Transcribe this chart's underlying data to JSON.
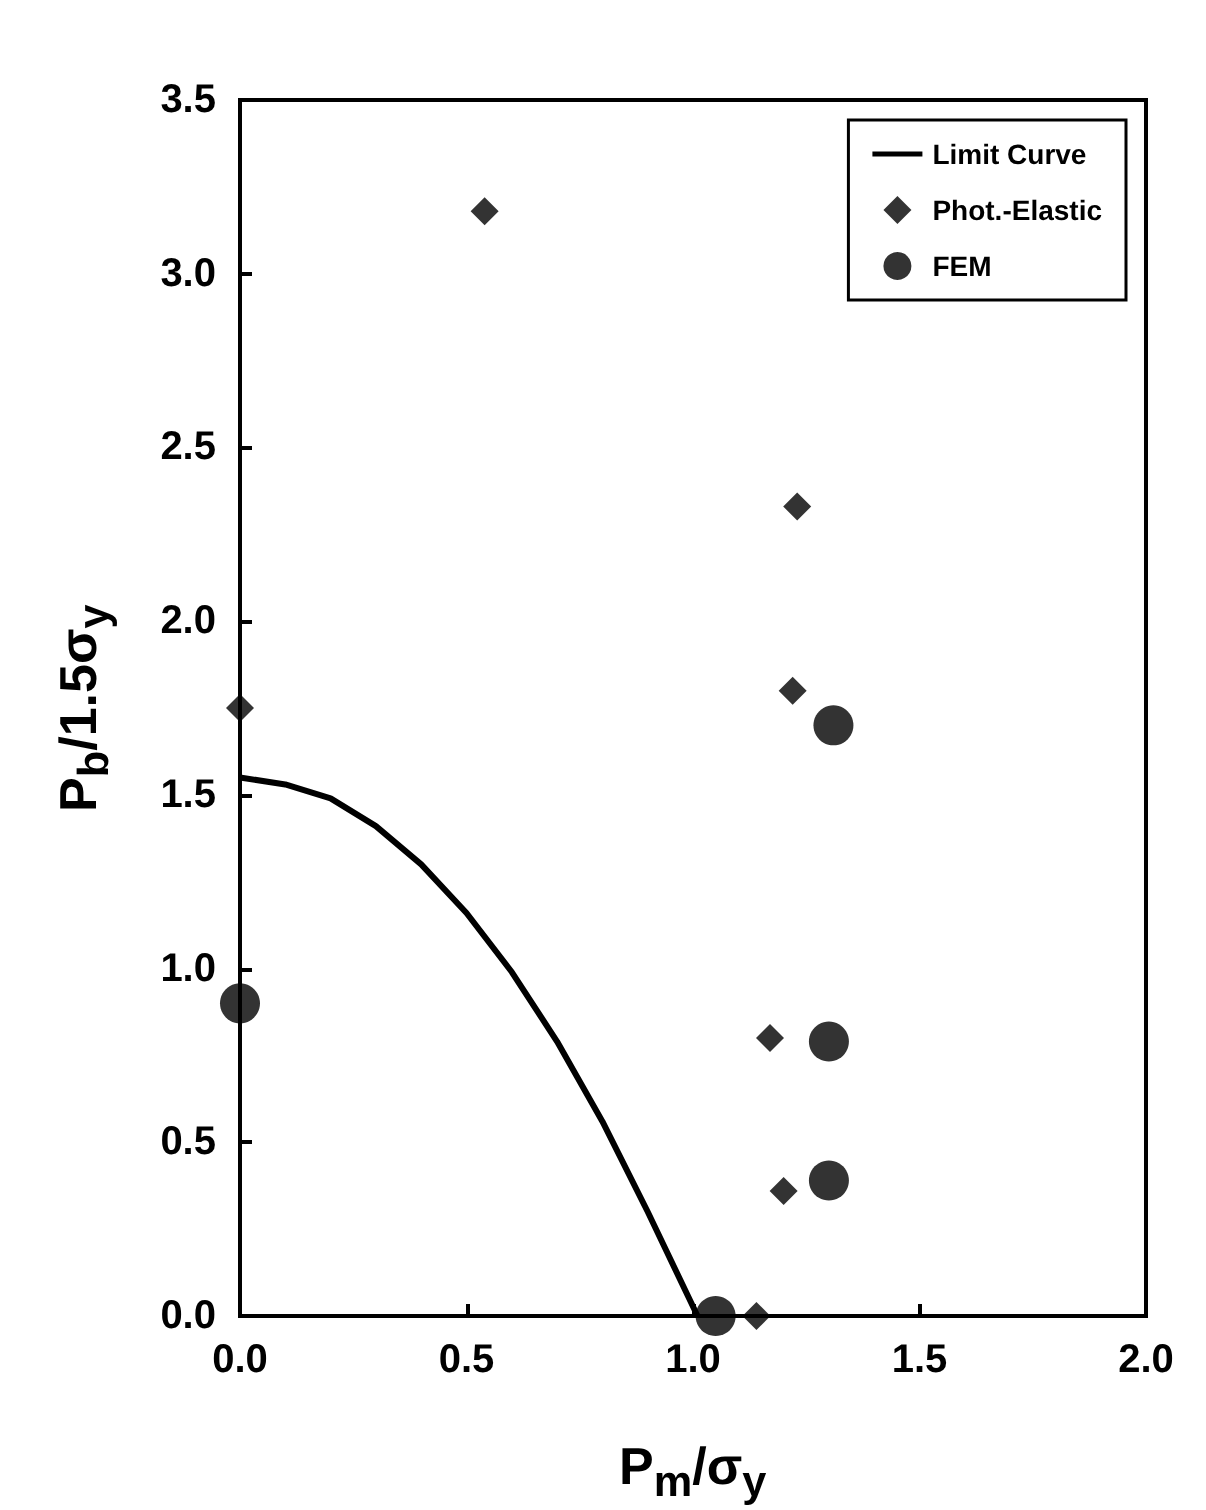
{
  "chart_data": {
    "type": "scatter",
    "xlabel": "P$_{m}$/σ$_{y}$",
    "ylabel": "P$_{b}$/1.5σ$_{y}$",
    "xlim": [
      0,
      2
    ],
    "xticks": [
      {
        "value": 0,
        "label": "0.0"
      },
      0.5,
      {
        "value": 1,
        "label": "1.0"
      },
      1.5,
      {
        "value": 2,
        "label": "2.0"
      }
    ],
    "ylim": [
      0,
      3.5
    ],
    "yticks": [
      {
        "value": 0,
        "label": "0.0"
      },
      0.5,
      {
        "value": 1,
        "label": "1.0"
      },
      1.5,
      {
        "value": 2,
        "label": "2.0"
      },
      2.5,
      {
        "value": 3,
        "label": "3.0"
      },
      3.5
    ],
    "legend": "top right",
    "grid": false,
    "series": [
      {
        "name": "Limit Curve",
        "type": "line",
        "marker": "none",
        "line_style": "solid",
        "color": "#000000",
        "x": [
          0,
          0.1,
          0.2,
          0.3,
          0.4,
          0.5,
          0.6,
          0.7,
          0.8,
          0.9,
          1.01
        ],
        "values": [
          1.55,
          1.53,
          1.49,
          1.41,
          1.3,
          1.16,
          0.99,
          0.79,
          0.56,
          0.3,
          0
        ]
      },
      {
        "name": "Phot.-Elastic",
        "marker": "diamond",
        "color": "#000000",
        "x": [
          0,
          0.54,
          1.23,
          1.22,
          1.17,
          1.2,
          1.14
        ],
        "values": [
          1.75,
          3.18,
          2.33,
          1.8,
          0.8,
          0.36,
          0
        ]
      },
      {
        "name": "FEM",
        "marker": "circle",
        "color": "#000000",
        "x": [
          0,
          1.31,
          1.3,
          1.3,
          1.05
        ],
        "values": [
          0.9,
          1.7,
          0.79,
          0.39,
          0
        ]
      }
    ]
  }
}
